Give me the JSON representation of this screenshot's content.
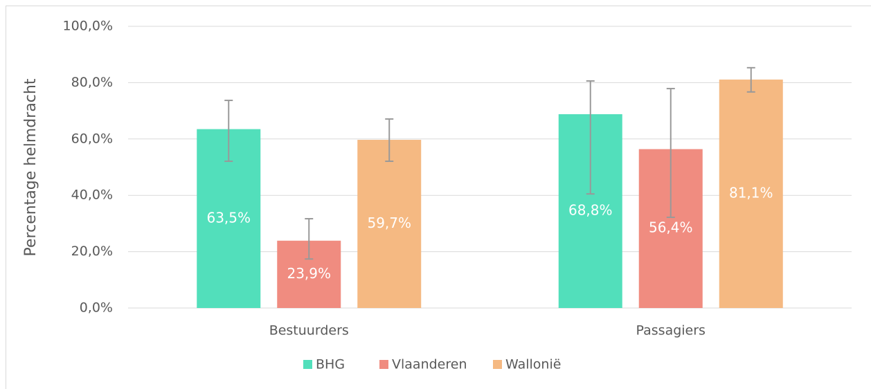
{
  "chart_data": {
    "type": "bar",
    "y_label": "Percentage helmdracht",
    "categories": [
      "Bestuurders",
      "Passagiers"
    ],
    "series": [
      {
        "name": "BHG",
        "color": "#52dfbb",
        "values": [
          63.5,
          68.8
        ],
        "value_labels": [
          "63,5%",
          "68,8%"
        ],
        "ci_low": [
          52.1,
          40.5
        ],
        "ci_high": [
          73.7,
          80.6
        ]
      },
      {
        "name": "Vlaanderen",
        "color": "#f08c80",
        "values": [
          23.9,
          56.4
        ],
        "value_labels": [
          "23,9%",
          "56,4%"
        ],
        "ci_low": [
          17.4,
          32.2
        ],
        "ci_high": [
          31.7,
          77.9
        ]
      },
      {
        "name": "Wallonië",
        "color": "#f5b982",
        "values": [
          59.7,
          81.1
        ],
        "value_labels": [
          "59,7%",
          "81,1%"
        ],
        "ci_low": [
          52.1,
          76.7
        ],
        "ci_high": [
          67.1,
          85.3
        ]
      }
    ],
    "ylim": [
      0,
      100
    ],
    "yticks": [
      {
        "value": 0,
        "label": "0,0%"
      },
      {
        "value": 20,
        "label": "20,0%"
      },
      {
        "value": 40,
        "label": "40,0%"
      },
      {
        "value": 60,
        "label": "60,0%"
      },
      {
        "value": 80,
        "label": "80,0%"
      },
      {
        "value": 100,
        "label": "100,0%"
      }
    ],
    "grid": true,
    "legend": "bottom"
  }
}
